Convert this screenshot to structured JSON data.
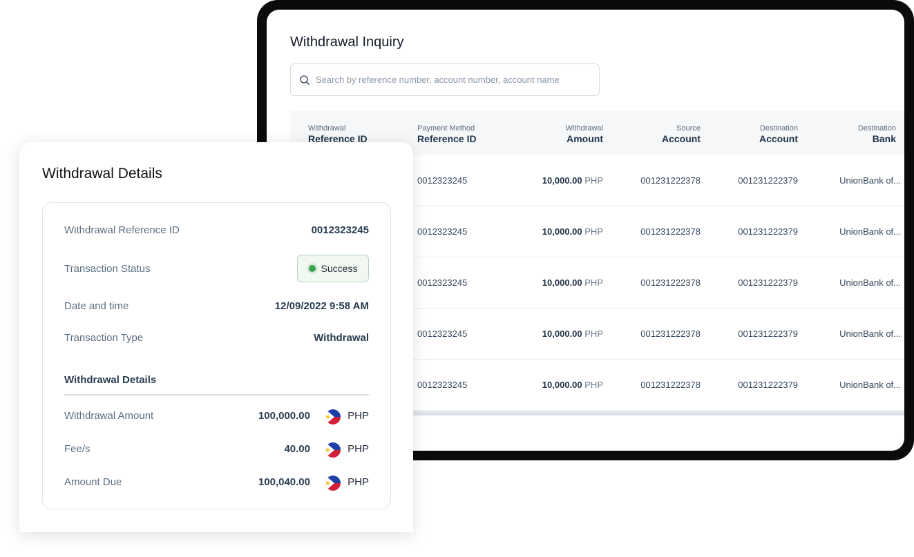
{
  "inquiry": {
    "title": "Withdrawal Inquiry",
    "search_placeholder": "Search by reference number, account number, account name",
    "columns": [
      {
        "top": "Withdrawal",
        "bottom": "Reference ID"
      },
      {
        "top": "Payment Method",
        "bottom": "Reference ID"
      },
      {
        "top": "Withdrawal",
        "bottom": "Amount"
      },
      {
        "top": "Source",
        "bottom": "Account"
      },
      {
        "top": "Destination",
        "bottom": "Account"
      },
      {
        "top": "Destination",
        "bottom": "Bank"
      }
    ],
    "rows": [
      {
        "pm_ref": "0012323245",
        "amount": "10,000.00",
        "currency": "PHP",
        "source": "001231222378",
        "dest": "001231222379",
        "bank": "UnionBank of..."
      },
      {
        "pm_ref": "0012323245",
        "amount": "10,000.00",
        "currency": "PHP",
        "source": "001231222378",
        "dest": "001231222379",
        "bank": "UnionBank of..."
      },
      {
        "pm_ref": "0012323245",
        "amount": "10,000.00",
        "currency": "PHP",
        "source": "001231222378",
        "dest": "001231222379",
        "bank": "UnionBank of..."
      },
      {
        "pm_ref": "0012323245",
        "amount": "10,000.00",
        "currency": "PHP",
        "source": "001231222378",
        "dest": "001231222379",
        "bank": "UnionBank of..."
      },
      {
        "pm_ref": "0012323245",
        "amount": "10,000.00",
        "currency": "PHP",
        "source": "001231222378",
        "dest": "001231222379",
        "bank": "UnionBank of..."
      }
    ]
  },
  "details": {
    "title": "Withdrawal Details",
    "ref_label": "Withdrawal Reference ID",
    "ref_value": "0012323245",
    "status_label": "Transaction Status",
    "status_value": "Success",
    "status_color": "#3aa551",
    "date_label": "Date and time",
    "date_value": "12/09/2022 9:58 AM",
    "type_label": "Transaction Type",
    "type_value": "Withdrawal",
    "section": "Withdrawal Details",
    "amounts": [
      {
        "label": "Withdrawal Amount",
        "value": "100,000.00",
        "currency": "PHP"
      },
      {
        "label": "Fee/s",
        "value": "40.00",
        "currency": "PHP"
      },
      {
        "label": "Amount Due",
        "value": "100,040.00",
        "currency": "PHP"
      }
    ]
  }
}
